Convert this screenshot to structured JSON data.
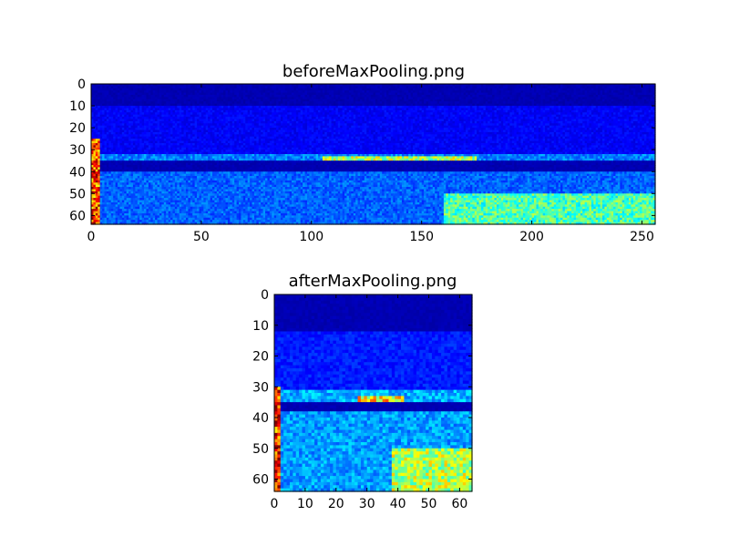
{
  "chart_data": [
    {
      "type": "heatmap",
      "title": "beforeMaxPooling.png",
      "xlabel": "",
      "ylabel": "",
      "xlim": [
        0,
        256
      ],
      "ylim": [
        64,
        0
      ],
      "image_shape": [
        64,
        256
      ],
      "colormap": "jet",
      "x_ticks": [
        0,
        50,
        100,
        150,
        200,
        250
      ],
      "y_ticks": [
        0,
        10,
        20,
        30,
        40,
        50,
        60
      ],
      "features": [
        {
          "kind": "background",
          "rows": [
            0,
            64
          ],
          "cols": [
            0,
            256
          ],
          "level": 0.05
        },
        {
          "kind": "band",
          "rows": [
            10,
            32
          ],
          "cols": [
            0,
            256
          ],
          "level": 0.12
        },
        {
          "kind": "band",
          "rows": [
            32,
            35
          ],
          "cols": [
            0,
            256
          ],
          "level": 0.25
        },
        {
          "kind": "band",
          "rows": [
            33,
            35
          ],
          "cols": [
            105,
            175
          ],
          "level": 0.55
        },
        {
          "kind": "band",
          "rows": [
            40,
            64
          ],
          "cols": [
            0,
            256
          ],
          "level": 0.22
        },
        {
          "kind": "band",
          "rows": [
            50,
            64
          ],
          "cols": [
            160,
            256
          ],
          "level": 0.45
        },
        {
          "kind": "column",
          "rows": [
            25,
            64
          ],
          "cols": [
            0,
            4
          ],
          "level": 0.8
        }
      ]
    },
    {
      "type": "heatmap",
      "title": "afterMaxPooling.png",
      "xlabel": "",
      "ylabel": "",
      "xlim": [
        0,
        64
      ],
      "ylim": [
        64,
        0
      ],
      "image_shape": [
        64,
        64
      ],
      "colormap": "jet",
      "x_ticks": [
        0,
        10,
        20,
        30,
        40,
        50,
        60
      ],
      "y_ticks": [
        0,
        10,
        20,
        30,
        40,
        50,
        60
      ],
      "features": [
        {
          "kind": "background",
          "rows": [
            0,
            64
          ],
          "cols": [
            0,
            64
          ],
          "level": 0.05
        },
        {
          "kind": "band",
          "rows": [
            12,
            32
          ],
          "cols": [
            0,
            64
          ],
          "level": 0.15
        },
        {
          "kind": "band",
          "rows": [
            31,
            35
          ],
          "cols": [
            0,
            64
          ],
          "level": 0.3
        },
        {
          "kind": "band",
          "rows": [
            33,
            35
          ],
          "cols": [
            27,
            42
          ],
          "level": 0.65
        },
        {
          "kind": "band",
          "rows": [
            38,
            64
          ],
          "cols": [
            0,
            64
          ],
          "level": 0.28
        },
        {
          "kind": "band",
          "rows": [
            50,
            64
          ],
          "cols": [
            38,
            64
          ],
          "level": 0.55
        },
        {
          "kind": "column",
          "rows": [
            30,
            64
          ],
          "cols": [
            0,
            2
          ],
          "level": 0.85
        }
      ]
    }
  ]
}
